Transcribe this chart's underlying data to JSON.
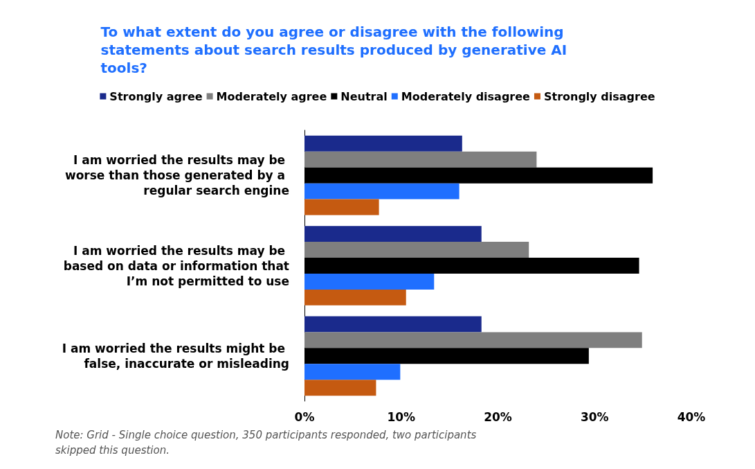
{
  "chart_data": {
    "type": "bar",
    "orientation": "horizontal",
    "title": "To what extent do you agree or disagree with the following statements about search results produced by generative AI tools?",
    "categories": [
      "I am worried the results may be worse than those generated by a regular search engine",
      "I am worried the results may be based on data or information that I’m not permitted to use",
      "I am worried the results might be false, inaccurate or misleading"
    ],
    "series": [
      {
        "name": "Strongly agree",
        "color": "#1a2a8c",
        "values": [
          16.3,
          18.3,
          18.3
        ]
      },
      {
        "name": "Moderately agree",
        "color": "#7f7f7f",
        "values": [
          24.0,
          23.2,
          34.9
        ]
      },
      {
        "name": "Neutral",
        "color": "#000000",
        "values": [
          36.0,
          34.6,
          29.4
        ]
      },
      {
        "name": "Moderately disagree",
        "color": "#1f6fff",
        "values": [
          16.0,
          13.4,
          9.9
        ]
      },
      {
        "name": "Strongly disagree",
        "color": "#c55a11",
        "values": [
          7.7,
          10.5,
          7.4
        ]
      }
    ],
    "xlim": [
      0,
      40
    ],
    "xticks": [
      {
        "value": 0,
        "label": "0%"
      },
      {
        "value": 10,
        "label": "10%"
      },
      {
        "value": 20,
        "label": "20%"
      },
      {
        "value": 30,
        "label": "30%"
      },
      {
        "value": 40,
        "label": "40%"
      }
    ],
    "grid": false,
    "legend": "top",
    "annotations": [
      "Note: Grid - Single choice question, 350 participants responded, two participants skipped this question."
    ]
  }
}
